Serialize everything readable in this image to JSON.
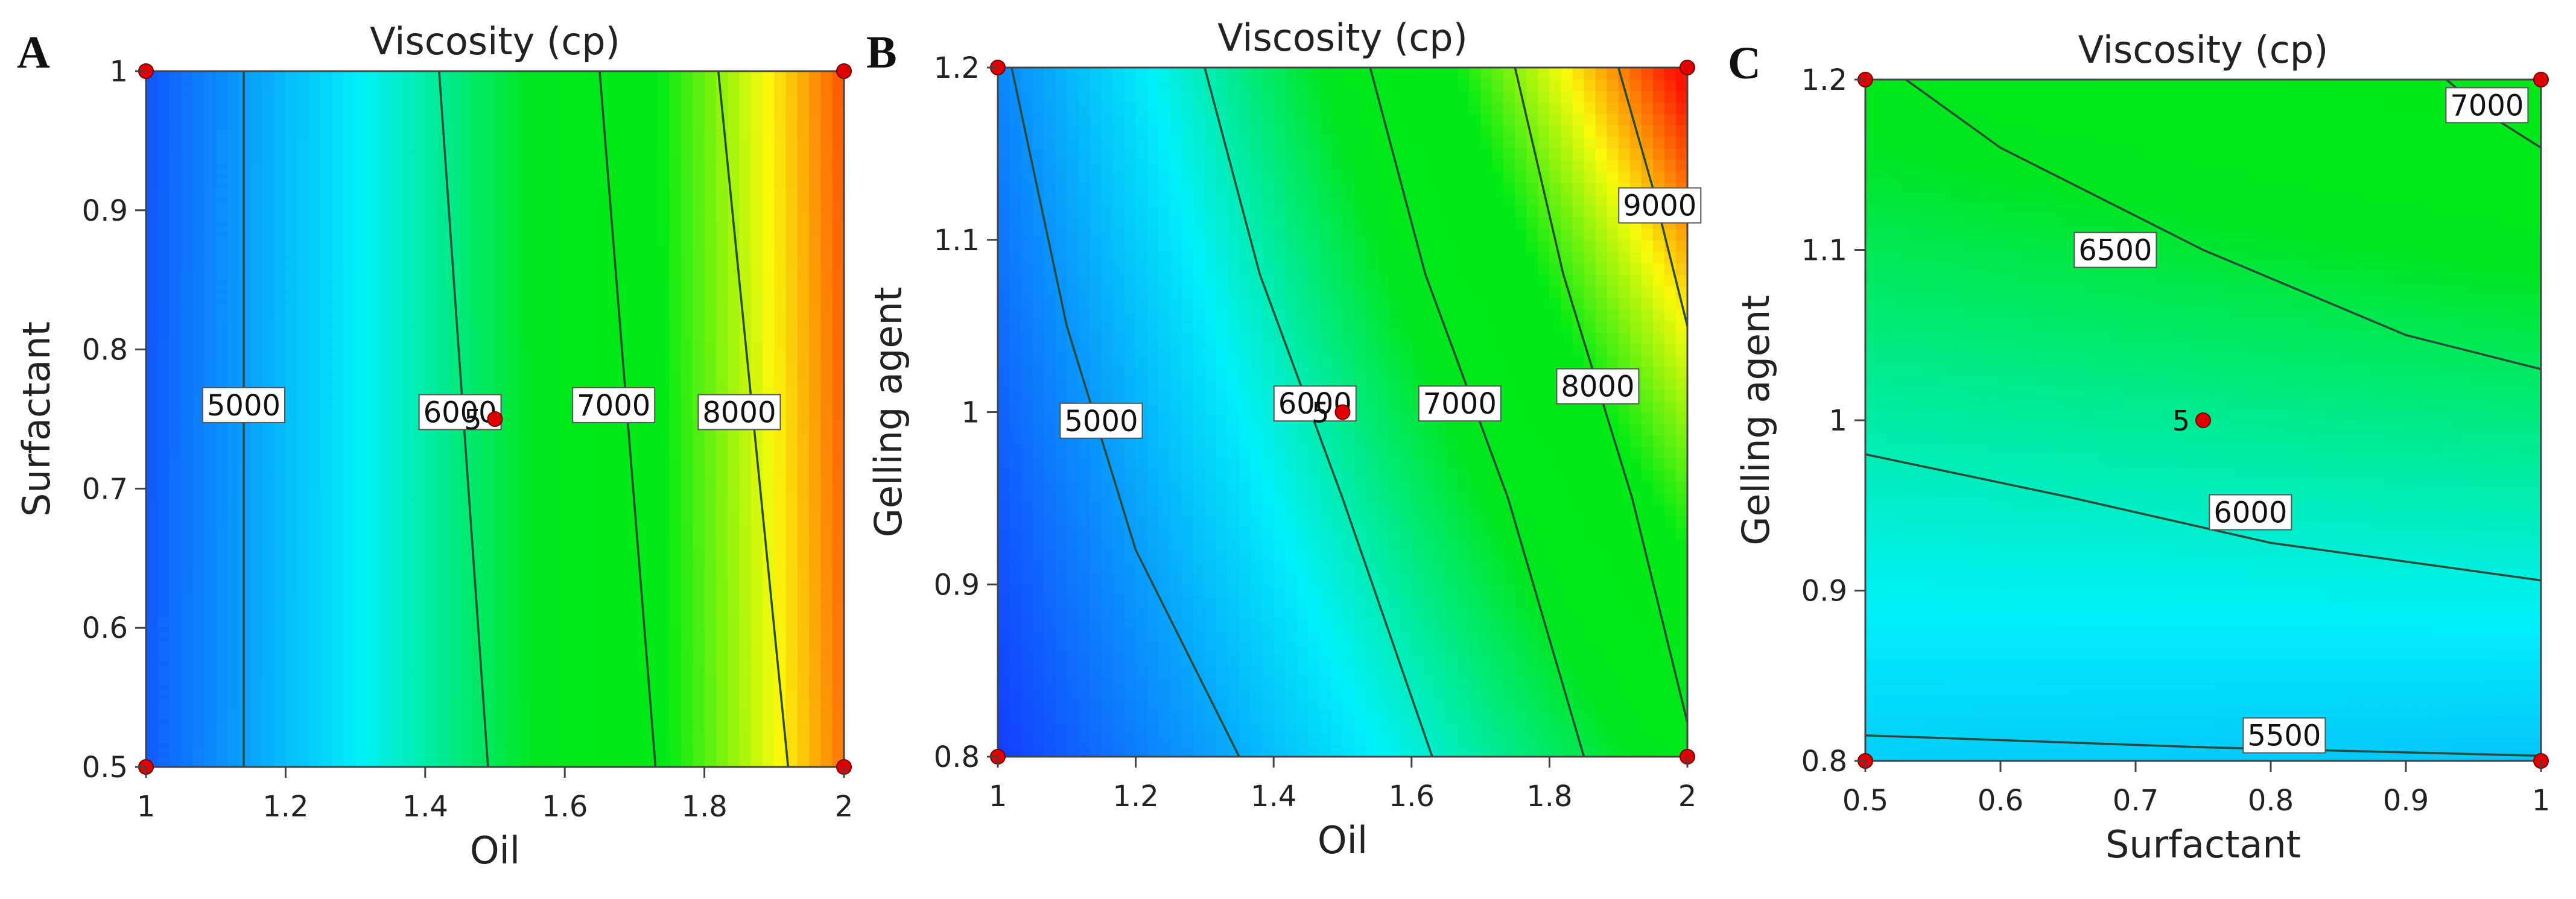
{
  "chart_data": [
    {
      "panel": "A",
      "type": "contour",
      "title": "Viscosity (cp)",
      "xlabel": "Oil",
      "ylabel": "Surfactant",
      "xlim": [
        1,
        2
      ],
      "ylim": [
        0.5,
        1
      ],
      "xticks": [
        "1",
        "1.2",
        "1.4",
        "1.6",
        "1.8",
        "2"
      ],
      "yticks": [
        "0.5",
        "0.6",
        "0.7",
        "0.8",
        "0.9",
        "1"
      ],
      "color_range": [
        4000,
        9200
      ],
      "corner_values": {
        "x0y0": 4300,
        "x1y0": 8900,
        "x0y1": 4250,
        "x1y1": 9000
      },
      "contours": [
        {
          "level": "5000",
          "points": [
            [
              1.14,
              0.5
            ],
            [
              1.14,
              1.0
            ]
          ],
          "label_at": [
            1.14,
            0.76
          ]
        },
        {
          "level": "6000",
          "points": [
            [
              1.49,
              0.5
            ],
            [
              1.42,
              1.0
            ]
          ],
          "label_at": [
            1.45,
            0.755
          ]
        },
        {
          "level": "7000",
          "points": [
            [
              1.73,
              0.5
            ],
            [
              1.65,
              1.0
            ]
          ],
          "label_at": [
            1.67,
            0.76
          ]
        },
        {
          "level": "8000",
          "points": [
            [
              1.92,
              0.5
            ],
            [
              1.82,
              1.0
            ]
          ],
          "label_at": [
            1.85,
            0.755
          ]
        }
      ],
      "design_points": [
        [
          1,
          0.5
        ],
        [
          2,
          0.5
        ],
        [
          1,
          1
        ],
        [
          2,
          1
        ],
        [
          1.5,
          0.75
        ]
      ],
      "center_label": {
        "text": "5",
        "x": 1.5,
        "y": 0.75
      }
    },
    {
      "panel": "B",
      "type": "contour",
      "title": "Viscosity (cp)",
      "xlabel": "Oil",
      "ylabel": "Gelling agent",
      "xlim": [
        1,
        2
      ],
      "ylim": [
        0.8,
        1.2
      ],
      "xticks": [
        "1",
        "1.2",
        "1.4",
        "1.6",
        "1.8",
        "2"
      ],
      "yticks": [
        "0.8",
        "0.9",
        "1",
        "1.1",
        "1.2"
      ],
      "color_range": [
        4000,
        9200
      ],
      "corner_values": {
        "x0y0": 4000,
        "x1y0": 7100,
        "x0y1": 4700,
        "x1y1": 9300
      },
      "contours": [
        {
          "level": "5000",
          "points": [
            [
              1.35,
              0.8
            ],
            [
              1.2,
              0.92
            ],
            [
              1.1,
              1.05
            ],
            [
              1.02,
              1.2
            ]
          ],
          "label_at": [
            1.15,
            0.995
          ]
        },
        {
          "level": "6000",
          "points": [
            [
              1.63,
              0.8
            ],
            [
              1.5,
              0.95
            ],
            [
              1.38,
              1.08
            ],
            [
              1.3,
              1.2
            ]
          ],
          "label_at": [
            1.46,
            1.005
          ]
        },
        {
          "level": "7000",
          "points": [
            [
              1.85,
              0.8
            ],
            [
              1.74,
              0.95
            ],
            [
              1.62,
              1.08
            ],
            [
              1.54,
              1.2
            ]
          ],
          "label_at": [
            1.67,
            1.005
          ]
        },
        {
          "level": "8000",
          "points": [
            [
              2.0,
              0.82
            ],
            [
              1.92,
              0.95
            ],
            [
              1.82,
              1.08
            ],
            [
              1.75,
              1.2
            ]
          ],
          "label_at": [
            1.87,
            1.015
          ]
        },
        {
          "level": "9000",
          "points": [
            [
              2.0,
              1.05
            ],
            [
              1.95,
              1.13
            ],
            [
              1.9,
              1.2
            ]
          ],
          "label_at": [
            1.96,
            1.12
          ]
        }
      ],
      "design_points": [
        [
          1,
          0.8
        ],
        [
          2,
          0.8
        ],
        [
          1,
          1.2
        ],
        [
          2,
          1.2
        ],
        [
          1.5,
          1.0
        ]
      ],
      "center_label": {
        "text": "5",
        "x": 1.5,
        "y": 1.0
      }
    },
    {
      "panel": "C",
      "type": "contour",
      "title": "Viscosity (cp)",
      "xlabel": "Surfactant",
      "ylabel": "Gelling agent",
      "xlim": [
        0.5,
        1
      ],
      "ylim": [
        0.8,
        1.2
      ],
      "xticks": [
        "0.5",
        "0.6",
        "0.7",
        "0.8",
        "0.9",
        "1"
      ],
      "yticks": [
        "0.8",
        "0.9",
        "1",
        "1.1",
        "1.2"
      ],
      "color_range": [
        4000,
        9200
      ],
      "corner_values": {
        "x0y0": 5400,
        "x1y0": 5300,
        "x0y1": 6650,
        "x1y1": 7150
      },
      "contours": [
        {
          "level": "5500",
          "points": [
            [
              0.5,
              0.815
            ],
            [
              0.75,
              0.808
            ],
            [
              1.0,
              0.803
            ]
          ],
          "label_at": [
            0.81,
            0.815
          ]
        },
        {
          "level": "6000",
          "points": [
            [
              0.5,
              0.98
            ],
            [
              0.65,
              0.955
            ],
            [
              0.8,
              0.928
            ],
            [
              1.0,
              0.906
            ]
          ],
          "label_at": [
            0.785,
            0.946
          ]
        },
        {
          "level": "6500",
          "points": [
            [
              0.53,
              1.2
            ],
            [
              0.6,
              1.16
            ],
            [
              0.75,
              1.1
            ],
            [
              0.9,
              1.05
            ],
            [
              1.0,
              1.03
            ]
          ],
          "label_at": [
            0.685,
            1.1
          ]
        },
        {
          "level": "7000",
          "points": [
            [
              0.93,
              1.2
            ],
            [
              0.96,
              1.18
            ],
            [
              1.0,
              1.16
            ]
          ],
          "label_at": [
            0.96,
            1.185
          ]
        }
      ],
      "design_points": [
        [
          0.5,
          0.8
        ],
        [
          1,
          0.8
        ],
        [
          0.5,
          1.2
        ],
        [
          1,
          1.2
        ],
        [
          0.75,
          1.0
        ]
      ],
      "center_label": {
        "text": "5",
        "x": 0.75,
        "y": 1.0
      }
    }
  ]
}
